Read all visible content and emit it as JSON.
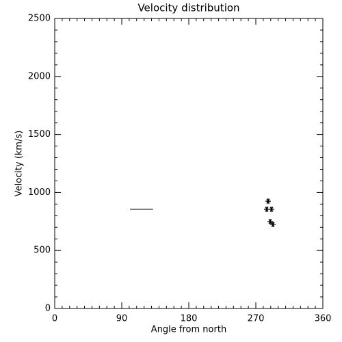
{
  "chart_data": {
    "type": "scatter",
    "title": "Velocity distribution",
    "xlabel": "Angle from north",
    "ylabel": "Velocity (km/s)",
    "xlim": [
      0,
      360
    ],
    "xticks": [
      0,
      90,
      180,
      270,
      360
    ],
    "ylim": [
      0,
      2500
    ],
    "yticks": [
      0,
      500,
      1000,
      1500,
      2000,
      2500
    ],
    "series": [
      {
        "mode": "line",
        "color": "#000000",
        "x": [
          101,
          132
        ],
        "values": [
          855,
          855
        ]
      },
      {
        "mode": "markers",
        "marker": "asterisk",
        "color": "#000000",
        "x": [
          286.5,
          284.7,
          291.1,
          289.3,
          293.0
        ],
        "values": [
          925,
          855,
          855,
          749,
          725
        ]
      }
    ]
  }
}
